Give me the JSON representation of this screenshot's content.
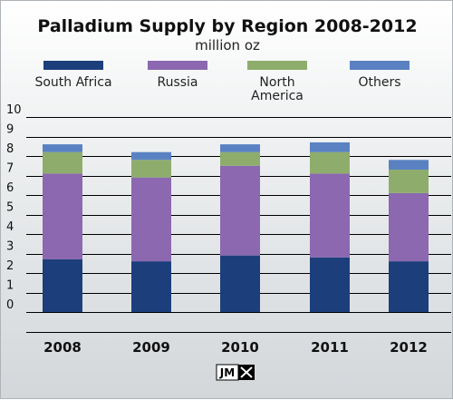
{
  "chart_data": {
    "type": "bar",
    "stacked": true,
    "title": "Palladium Supply by Region 2008-2012",
    "subtitle": "million oz",
    "categories": [
      "2008",
      "2009",
      "2010",
      "2011",
      "2012"
    ],
    "series": [
      {
        "name": "South Africa",
        "color": "#1c3f7c",
        "values": [
          2.7,
          2.6,
          2.9,
          2.8,
          2.6
        ]
      },
      {
        "name": "Russia",
        "color": "#8b68b0",
        "values": [
          4.4,
          4.3,
          4.6,
          4.3,
          3.5
        ]
      },
      {
        "name": "North America",
        "color": "#8ead6c",
        "values": [
          1.1,
          0.9,
          0.7,
          1.1,
          1.2
        ]
      },
      {
        "name": "Others",
        "color": "#5a82c2",
        "values": [
          0.4,
          0.4,
          0.4,
          0.5,
          0.5
        ]
      }
    ],
    "yticks": [
      "0",
      "1",
      "2",
      "3",
      "4",
      "5",
      "6",
      "7",
      "8",
      "9",
      "10"
    ],
    "ylim": [
      0,
      10
    ],
    "grid": true,
    "legend_position": "top"
  },
  "logo": {
    "text": "JM",
    "icon": "hammers-icon"
  }
}
